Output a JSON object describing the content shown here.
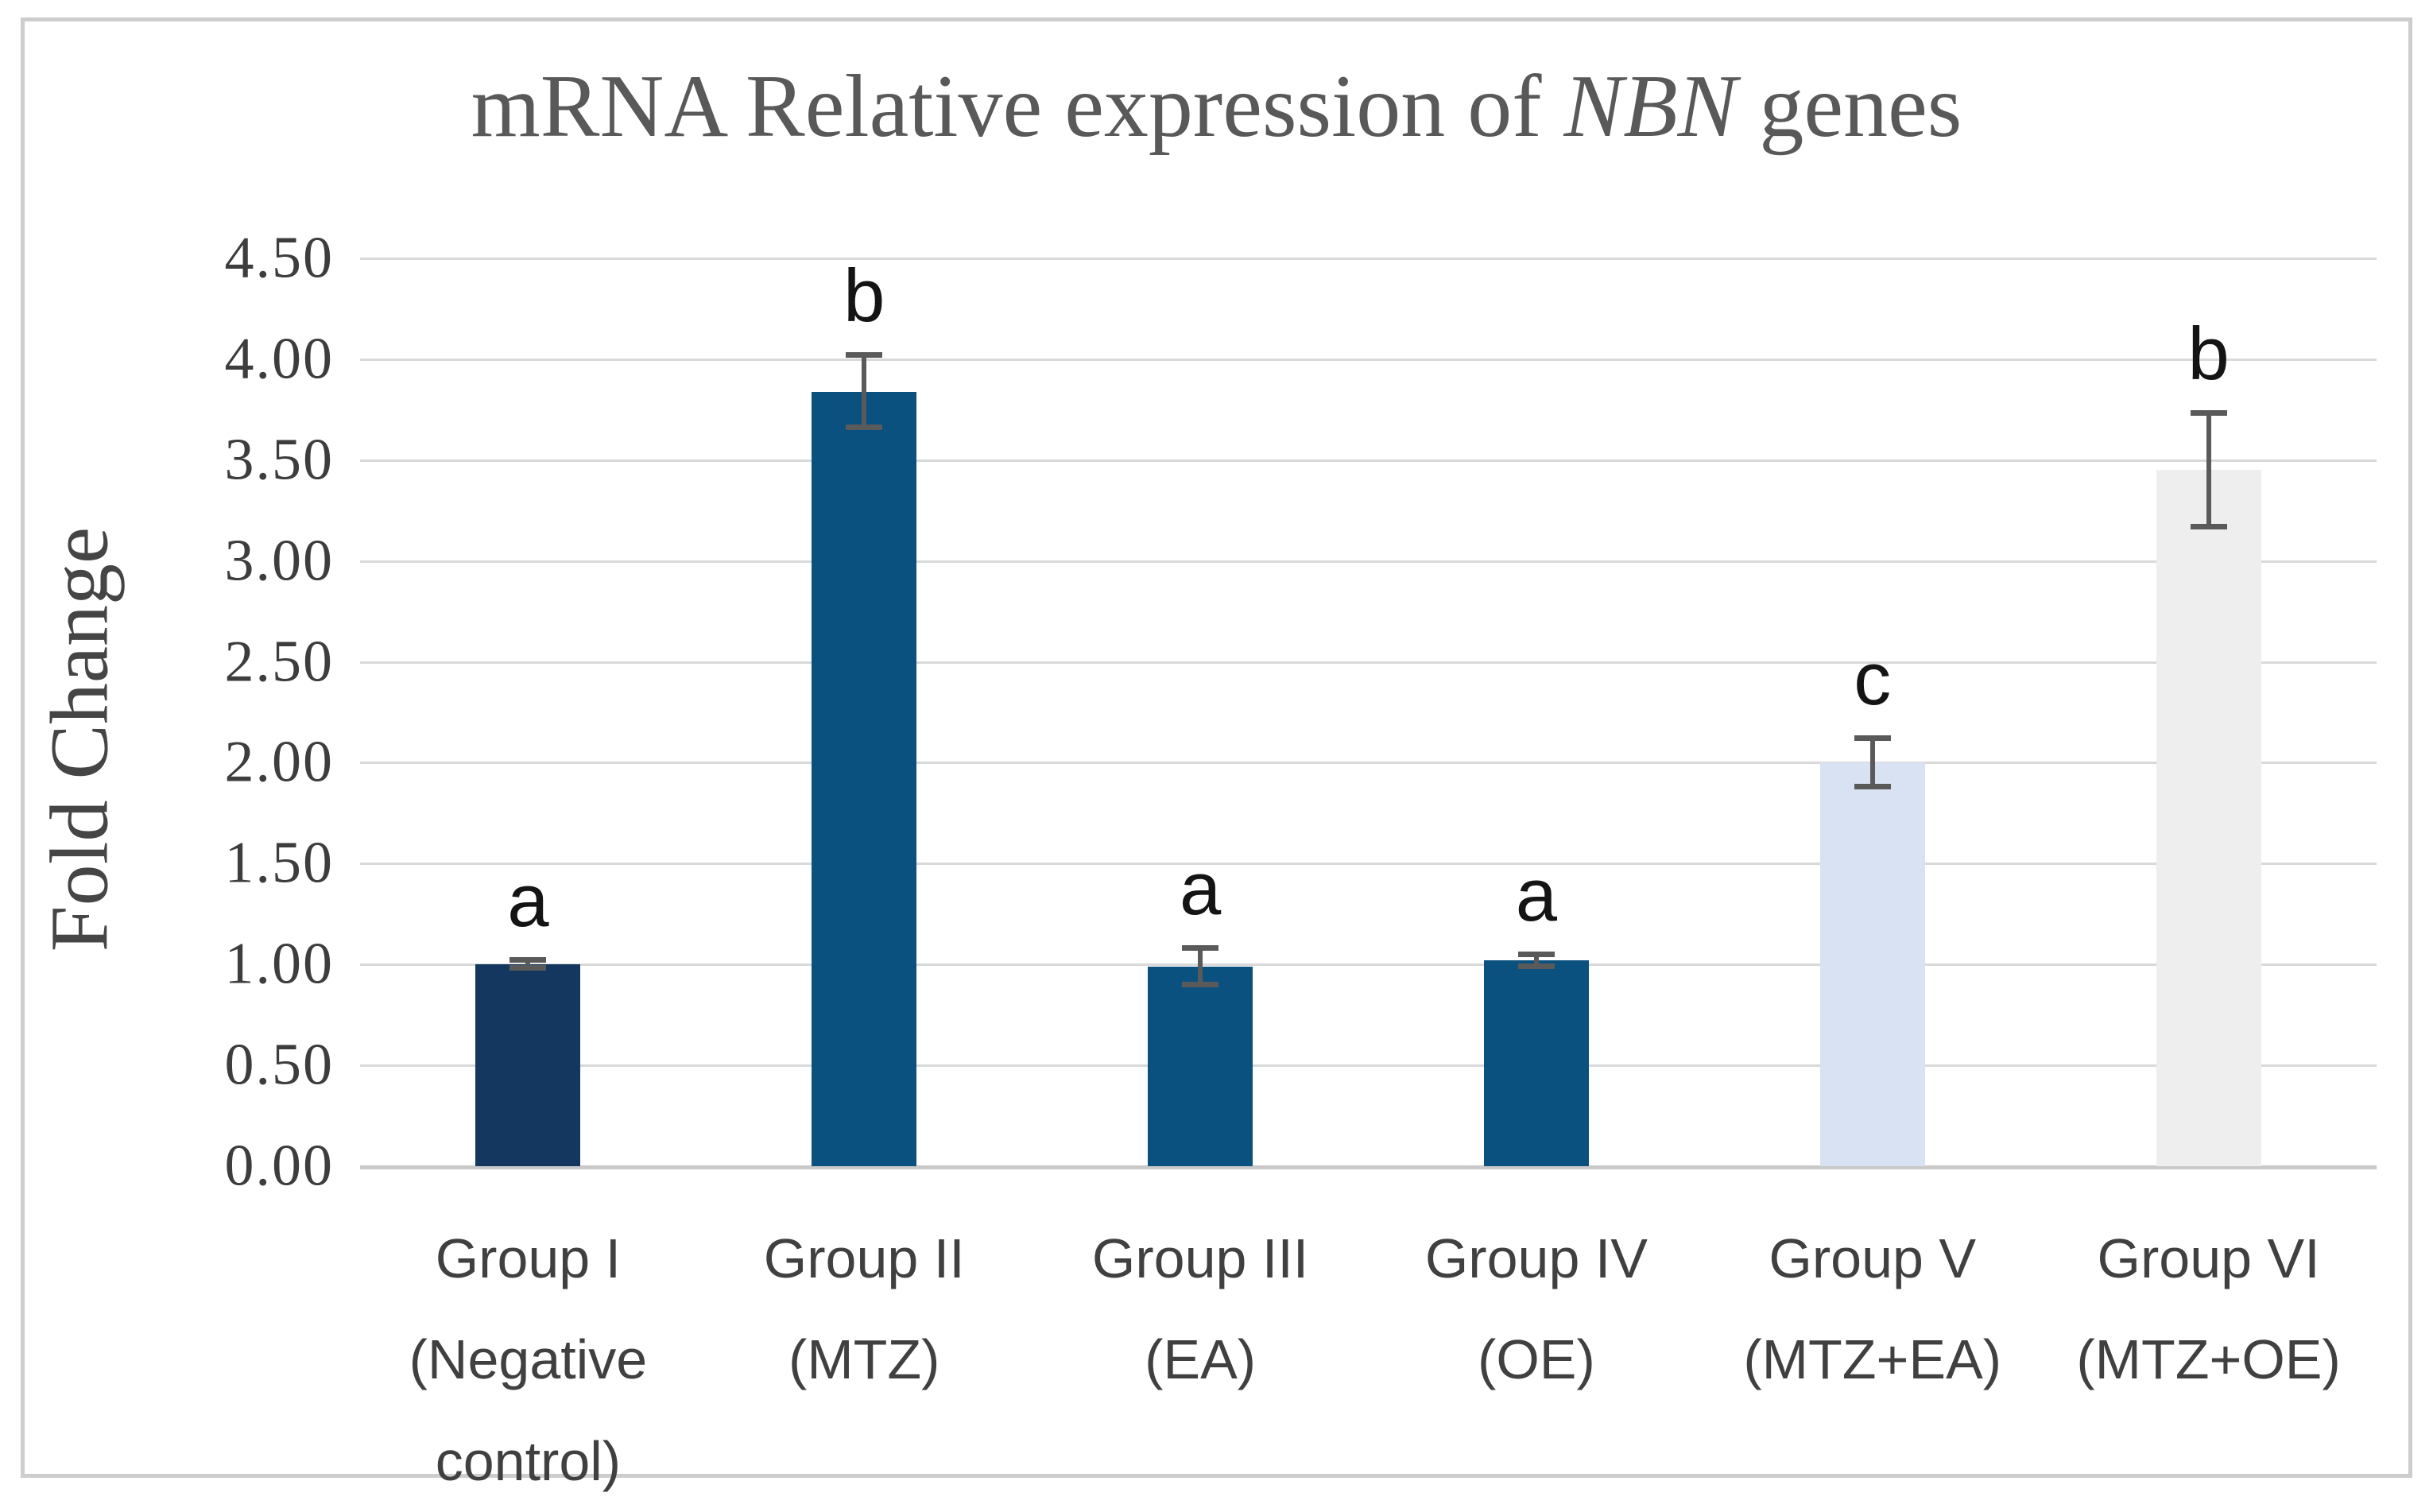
{
  "figure": {
    "background": "#ffffff",
    "border_color": "#cdcdcd"
  },
  "chart_data": {
    "type": "bar",
    "title": {
      "prefix": "mRNA Relative expression of ",
      "gene_italic": "NBN",
      "suffix": " genes"
    },
    "title_full": "mRNA Relative expression of NBN genes",
    "ylabel": "Fold Change",
    "xlabel": "",
    "ylim": [
      0,
      4.5
    ],
    "ytick_step": 0.5,
    "ytick_labels": [
      "4.50",
      "4.00",
      "3.50",
      "3.00",
      "2.50",
      "2.00",
      "1.50",
      "1.00",
      "0.50",
      "0.00"
    ],
    "grid": "horizontal",
    "legend": "none",
    "categories": [
      {
        "label": "Group I (Negative control)",
        "lines": [
          "Group I",
          "(Negative",
          "control)"
        ]
      },
      {
        "label": "Group II (MTZ)",
        "lines": [
          "Group II",
          "(MTZ)"
        ]
      },
      {
        "label": "Group III (EA)",
        "lines": [
          "Group III",
          "(EA)"
        ]
      },
      {
        "label": "Group IV (OE)",
        "lines": [
          "Group IV",
          "(OE)"
        ]
      },
      {
        "label": "Group V (MTZ+EA)",
        "lines": [
          "Group V",
          "(MTZ+EA)"
        ]
      },
      {
        "label": "Group VI (MTZ+OE)",
        "lines": [
          "Group VI",
          "(MTZ+OE)"
        ]
      }
    ],
    "series": [
      {
        "name": "Fold Change",
        "values": [
          1.0,
          3.84,
          0.99,
          1.02,
          2.0,
          3.45
        ],
        "error_bars": [
          0.02,
          0.18,
          0.09,
          0.03,
          0.12,
          0.28
        ],
        "significance_letters": [
          "a",
          "b",
          "a",
          "a",
          "c",
          "b"
        ],
        "bar_colors": [
          "#14375f",
          "#0a5180",
          "#0a5180",
          "#0a5180",
          "#d9e2f2",
          "#eeeeee"
        ]
      }
    ],
    "style": {
      "gridline_color": "#d9d9d9",
      "baseline_color": "#c9c9c9",
      "error_bar_color": "#5a5a5a",
      "title_color": "#595959",
      "tick_label_color": "#3d3d3d",
      "category_label_color": "#404040",
      "letter_color": "#141414"
    }
  }
}
